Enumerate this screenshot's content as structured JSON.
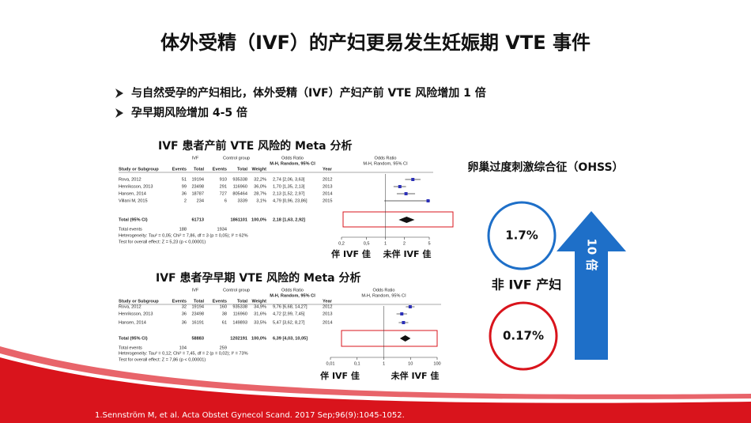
{
  "title": "体外受精（IVF）的产妇更易发生妊娠期 VTE 事件",
  "bullets": [
    "与自然受孕的产妇相比，体外受精（IVF）产妇产前 VTE 风险增加 1 倍",
    "孕早期风险增加 4-5 倍"
  ],
  "forest_plots": [
    {
      "title": "IVF 患者产前 VTE 风险的 Meta 分析",
      "column_groups": [
        "IVF",
        "Control group",
        "Odds Ratio"
      ],
      "columns": [
        "Study or Subgroup",
        "Events",
        "Total",
        "Events",
        "Total",
        "Weight",
        "M-H, Random, 95% CI",
        "Year"
      ],
      "plot_header": [
        "Odds Ratio",
        "M-H, Random, 95% CI"
      ],
      "rows": [
        {
          "cells": [
            "Rova, 2012",
            "51",
            "19194",
            "910",
            "935338",
            "32,2%",
            "2,74 [2,06, 3,63]",
            "2012"
          ],
          "or": 2.74,
          "ci": [
            2.06,
            3.63
          ]
        },
        {
          "cells": [
            "Henriksson, 2013",
            "99",
            "23498",
            "291",
            "116960",
            "36,0%",
            "1,70 [1,35, 2,13]",
            "2013"
          ],
          "or": 1.7,
          "ci": [
            1.35,
            2.13
          ]
        },
        {
          "cells": [
            "Hansen, 2014",
            "36",
            "18787",
            "727",
            "805464",
            "28,7%",
            "2,13 [1,52, 2,97]",
            "2014"
          ],
          "or": 2.13,
          "ci": [
            1.52,
            2.97
          ]
        },
        {
          "cells": [
            "Villani M, 2015",
            "2",
            "234",
            "6",
            "3339",
            "3,1%",
            "4,79 [0,96, 23,86]",
            "2015"
          ],
          "or": 4.79,
          "ci": [
            0.96,
            23.86
          ]
        }
      ],
      "total": {
        "label": "Total (95% CI)",
        "ivf_total": "61713",
        "ctrl_total": "1861101",
        "weight": "100,0%",
        "ci_label": "2,18 [1,63, 2,92]",
        "or": 2.18,
        "ci": [
          1.63,
          2.92
        ]
      },
      "total_events": {
        "label": "Total events",
        "ivf": "188",
        "ctrl": "1934"
      },
      "notes": [
        "Heterogeneity: Tau² = 0,05; Chi² = 7,86, df = 3 (p = 0,05); I² = 62%",
        "Test for overall effect: Z = 5,23 (p < 0,00001)"
      ],
      "xlim": [
        0.2,
        5
      ],
      "xticks": [
        {
          "value": 0.2,
          "label": "0,2"
        },
        {
          "value": 0.5,
          "label": "0,5"
        },
        1,
        2,
        5
      ],
      "xlabels": [
        "伴 IVF 佳",
        "未伴 IVF 佳"
      ]
    },
    {
      "title": "IVF 患者孕早期 VTE 风险的 Meta 分析",
      "column_groups": [
        "IVF",
        "Control group",
        "Odds Ratio"
      ],
      "columns": [
        "Study or Subgroup",
        "Events",
        "Total",
        "Events",
        "Total",
        "Weight",
        "M-H, Random, 95% CI",
        "Year"
      ],
      "plot_header": [
        "Odds Ratio",
        "M-H, Random, 95% CI"
      ],
      "rows": [
        {
          "cells": [
            "Rova, 2012",
            "32",
            "19194",
            "160",
            "935338",
            "34,9%",
            "9,76 [6,68, 14,27]",
            "2012"
          ],
          "or": 9.76,
          "ci": [
            6.68,
            14.27
          ]
        },
        {
          "cells": [
            "Henriksson, 2013",
            "36",
            "23498",
            "38",
            "116960",
            "31,6%",
            "4,72 [2,99, 7,45]",
            "2013"
          ],
          "or": 4.72,
          "ci": [
            2.99,
            7.45
          ]
        },
        {
          "cells": [
            "Hansen, 2014",
            "36",
            "16191",
            "61",
            "149893",
            "33,5%",
            "5,47 [3,62, 8,27]",
            "2014"
          ],
          "or": 5.47,
          "ci": [
            3.62,
            8.27
          ]
        }
      ],
      "total": {
        "label": "Total (95% CI)",
        "ivf_total": "58883",
        "ctrl_total": "1202191",
        "weight": "100,0%",
        "ci_label": "6,39 [4,03, 10,05]",
        "or": 6.39,
        "ci": [
          4.03,
          10.05
        ]
      },
      "total_events": {
        "label": "Total events",
        "ivf": "104",
        "ctrl": "259"
      },
      "notes": [
        "Heterogeneity: Tau² = 0,12; Chi² = 7,45, df = 2 (p = 0,02); I² = 73%",
        "Test for overall effect: Z = 7,86 (p < 0,00001)"
      ],
      "xlim": [
        0.01,
        100
      ],
      "xticks": [
        {
          "value": 0.01,
          "label": "0,01"
        },
        {
          "value": 0.1,
          "label": "0,1"
        },
        1,
        10,
        100
      ],
      "xlabels": [
        "伴 IVF 佳",
        "未伴 IVF 佳"
      ]
    }
  ],
  "ohss": {
    "title": "卵巢过度刺激综合征（OHSS）",
    "ivf_rate": "1.7%",
    "non_ivf_label": "非 IVF 产妇",
    "non_ivf_rate": "0.17%",
    "fold": "10 倍"
  },
  "footnote": "1.Sennström M, et al. Acta Obstet Gynecol Scand. 2017 Sep;96(9):1045-1052."
}
